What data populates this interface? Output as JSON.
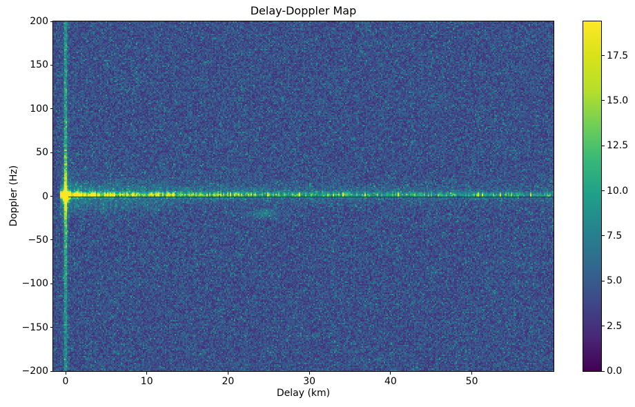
{
  "figure": {
    "title": "Delay-Doppler Map",
    "x_axis": {
      "label": "Delay (km)",
      "tick_labels": [
        "0",
        "10",
        "20",
        "30",
        "40",
        "50"
      ],
      "tick_values": [
        0,
        10,
        20,
        30,
        40,
        50
      ]
    },
    "y_axis": {
      "label": "Doppler (Hz)",
      "tick_labels": [
        "200",
        "150",
        "100",
        "50",
        "0",
        "−50",
        "−100",
        "−150",
        "−200"
      ],
      "tick_values": [
        200,
        150,
        100,
        50,
        0,
        -50,
        -100,
        -150,
        -200
      ]
    },
    "colorbar": {
      "tick_labels": [
        "0.0",
        "2.5",
        "5.0",
        "7.5",
        "10.0",
        "12.5",
        "15.0",
        "17.5"
      ],
      "tick_values": [
        0,
        2.5,
        5,
        7.5,
        10,
        12.5,
        15,
        17.5
      ]
    }
  },
  "chart_data": {
    "type": "heatmap",
    "title": "Delay-Doppler Map",
    "xlabel": "Delay (km)",
    "ylabel": "Doppler (Hz)",
    "xlim": [
      -1.53,
      60.06
    ],
    "ylim": [
      -200,
      200
    ],
    "x_ticks": [
      0,
      10,
      20,
      30,
      40,
      50
    ],
    "y_ticks": [
      200,
      150,
      100,
      50,
      0,
      -50,
      -100,
      -150,
      -200
    ],
    "grid": false,
    "legend": "none",
    "colormap": "viridis",
    "colormap_stops": [
      "#440154",
      "#482878",
      "#3e4989",
      "#31688e",
      "#26828e",
      "#1f9e89",
      "#35b779",
      "#6ece58",
      "#b5de2b",
      "#d8e219",
      "#fde725"
    ],
    "value_range": [
      0,
      19.4
    ],
    "colorbar_ticks": [
      0,
      2.5,
      5,
      7.5,
      10,
      12.5,
      15,
      17.5
    ],
    "background_noise": {
      "mean_value": 4.3,
      "spread": [
        2.0,
        9.5
      ]
    },
    "features": [
      {
        "name": "direct-signal-peak",
        "delay_km": 0,
        "doppler_hz": 0,
        "peak_value": 19.4
      },
      {
        "name": "zero-delay-vertical-stripe",
        "delay_km": 0,
        "doppler_span_hz": [
          -200,
          200
        ],
        "value": 9
      },
      {
        "name": "zero-doppler-clutter-ridge",
        "delay_span_km": [
          0,
          60
        ],
        "doppler_hz": 2,
        "value_near_origin": 14,
        "value_far_delay": 8
      },
      {
        "name": "zero-doppler-dark-notch",
        "delay_span_km": [
          0.3,
          60
        ],
        "doppler_hz": -1,
        "value": 1
      },
      {
        "name": "multipath-comb-spikes",
        "delay_span_km": [
          0,
          16
        ],
        "doppler_span_hz": [
          -25,
          20
        ],
        "value": 11
      },
      {
        "name": "faint-echo-ghost",
        "delay_km": 24.5,
        "doppler_hz": -20,
        "value": 7
      }
    ]
  }
}
